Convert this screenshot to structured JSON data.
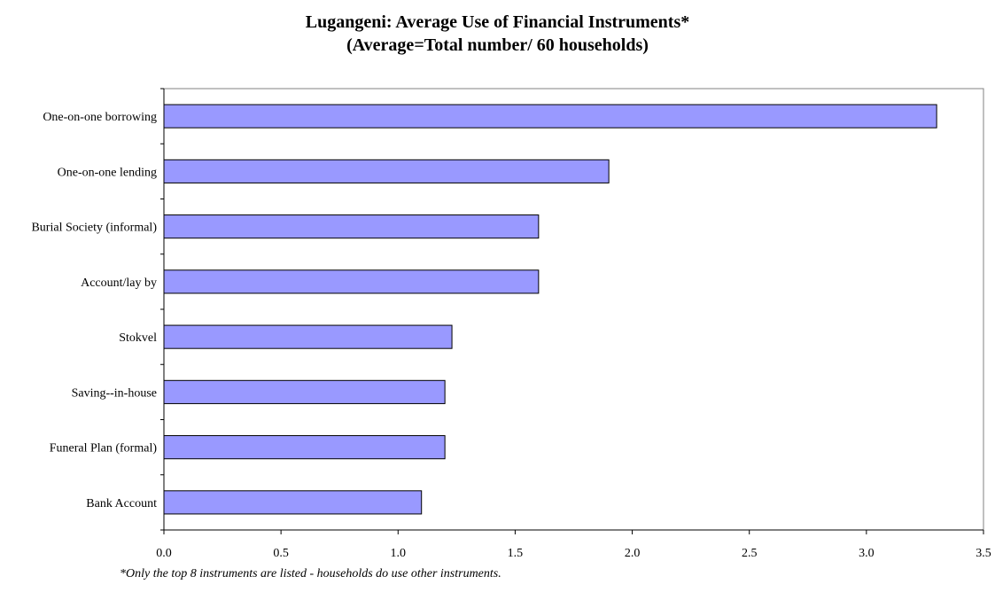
{
  "chart_data": {
    "type": "bar",
    "orientation": "horizontal",
    "title": "Lugangeni: Average Use of Financial Instruments*",
    "subtitle": "(Average=Total number/ 60 households)",
    "categories": [
      "One-on-one borrowing",
      "One-on-one lending",
      "Burial Society (informal)",
      "Account/lay by",
      "Stokvel",
      "Saving--in-house",
      "Funeral Plan (formal)",
      "Bank Account"
    ],
    "values": [
      3.3,
      1.9,
      1.6,
      1.6,
      1.23,
      1.2,
      1.2,
      1.1
    ],
    "xlim": [
      0,
      3.5
    ],
    "xticks": [
      "0.0",
      "0.5",
      "1.0",
      "1.5",
      "2.0",
      "2.5",
      "3.0",
      "3.5"
    ],
    "bar_color": "#9999ff",
    "grid": false,
    "legend": "none",
    "footnote": "*Only the top 8 instruments are listed - households do use other instruments."
  }
}
